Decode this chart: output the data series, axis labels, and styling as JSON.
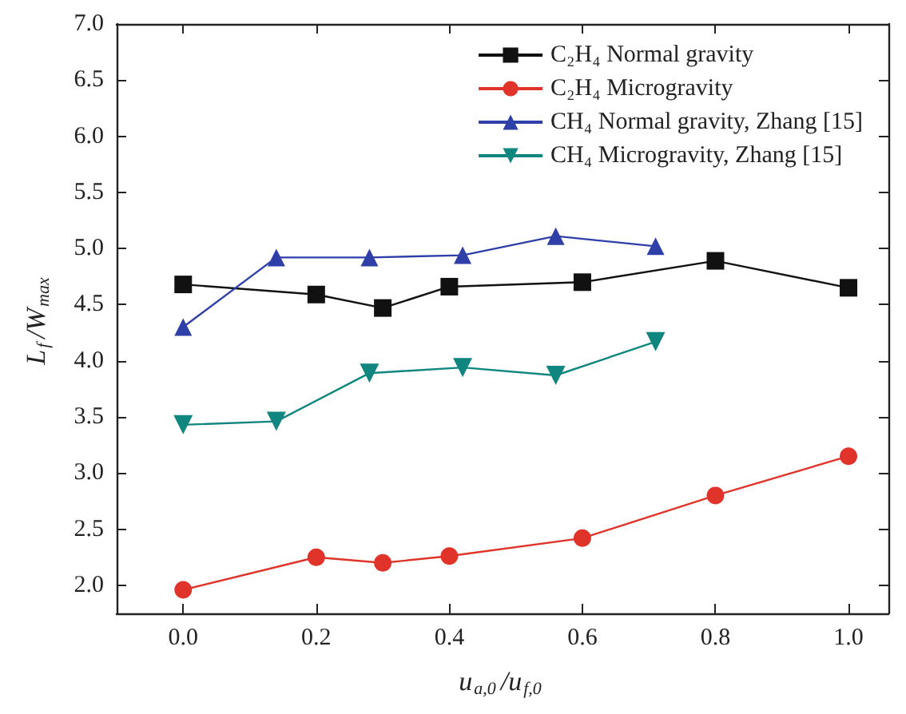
{
  "chart_data": {
    "type": "line",
    "xlabel": "u$_{a,0}$/u$_{f,0}$",
    "ylabel": "L$_{f}$/W$_{max}$",
    "xlim": [
      -0.1,
      1.06
    ],
    "ylim": [
      1.75,
      7.0
    ],
    "xticks": [
      {
        "value": 0,
        "label": "0.0"
      },
      {
        "value": 0.2,
        "label": "0.2"
      },
      {
        "value": 0.4,
        "label": "0.4"
      },
      {
        "value": 0.6,
        "label": "0.6"
      },
      {
        "value": 0.8,
        "label": "0.8"
      },
      {
        "value": 1,
        "label": "1.0"
      }
    ],
    "yticks": [
      {
        "value": 2,
        "label": "2.0"
      },
      {
        "value": 2.5,
        "label": "2.5"
      },
      {
        "value": 3,
        "label": "3.0"
      },
      {
        "value": 3.5,
        "label": "3.5"
      },
      {
        "value": 4,
        "label": "4.0"
      },
      {
        "value": 4.5,
        "label": "4.5"
      },
      {
        "value": 5,
        "label": "5.0"
      },
      {
        "value": 5.5,
        "label": "5.5"
      },
      {
        "value": 6,
        "label": "6.0"
      },
      {
        "value": 6.5,
        "label": "6.5"
      },
      {
        "value": 7,
        "label": "7.0"
      }
    ],
    "grid": false,
    "legend": "top right",
    "line_style": "solid",
    "series": [
      {
        "name": "C₂H₄ Normal gravity",
        "color": "#111111",
        "marker": "square",
        "x": [
          0,
          0.2,
          0.3,
          0.4,
          0.6,
          0.8,
          1.0
        ],
        "values": [
          4.68,
          4.59,
          4.47,
          4.66,
          4.7,
          4.89,
          4.65
        ]
      },
      {
        "name": "C₂H₄ Microgravity",
        "color": "#e0332a",
        "marker": "circle",
        "x": [
          0,
          0.2,
          0.3,
          0.4,
          0.6,
          0.8,
          1.0
        ],
        "values": [
          1.96,
          2.25,
          2.2,
          2.26,
          2.42,
          2.8,
          3.15
        ]
      },
      {
        "name": "CH₄ Normal gravity, Zhang [15]",
        "color": "#2f3fa8",
        "marker": "triangle",
        "x": [
          0,
          0.14,
          0.28,
          0.42,
          0.56,
          0.71
        ],
        "values": [
          4.3,
          4.92,
          4.92,
          4.94,
          5.11,
          5.02
        ]
      },
      {
        "name": "CH₄ Microgravity, Zhang [15]",
        "color": "#11857f",
        "marker": "triangle-down",
        "x": [
          0,
          0.14,
          0.28,
          0.42,
          0.56,
          0.71
        ],
        "values": [
          3.43,
          3.46,
          3.89,
          3.94,
          3.87,
          4.17
        ]
      }
    ]
  }
}
